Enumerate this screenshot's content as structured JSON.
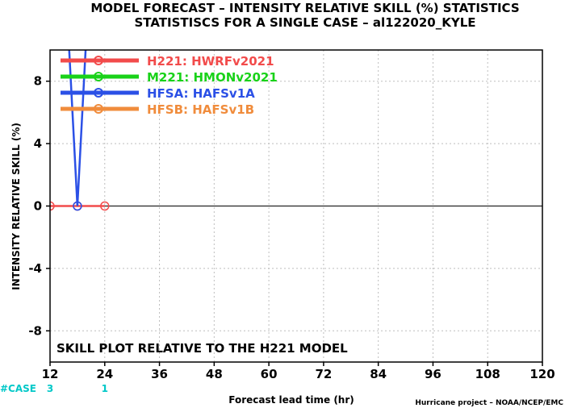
{
  "title_line1": "MODEL FORECAST – INTENSITY RELATIVE SKILL (%) STATISTICS",
  "title_line2": "STATISTISCS FOR A SINGLE CASE – al122020_KYLE",
  "note": "SKILL PLOT RELATIVE TO THE H221 MODEL",
  "credit": "Hurricane project – NOAA/NCEP/EMC",
  "case_label": "#CASE",
  "chart_data": {
    "type": "line",
    "xlabel": "Forecast lead time (hr)",
    "ylabel": "INTENSITY RELATIVE SKILL (%)",
    "xlim": [
      12,
      120
    ],
    "ylim": [
      -10,
      10
    ],
    "xticks": [
      12,
      24,
      36,
      48,
      60,
      72,
      84,
      96,
      108,
      120
    ],
    "yticks": [
      -8,
      -4,
      0,
      4,
      8
    ],
    "grid": true,
    "legend_position": "top-left",
    "case_counts": [
      {
        "x": 12,
        "label": "3"
      },
      {
        "x": 24,
        "label": "1"
      }
    ],
    "series": [
      {
        "name": "H221: HWRFv2021",
        "color": "#f24b4b",
        "points": [
          [
            12,
            0
          ],
          [
            18,
            0
          ],
          [
            24,
            0
          ]
        ]
      },
      {
        "name": "M221: HMONv2021",
        "color": "#19d219",
        "points": []
      },
      {
        "name": "HFSA: HAFSv1A",
        "color": "#2b50e6",
        "points": [
          [
            16.2,
            10
          ],
          [
            18,
            0
          ],
          [
            19.8,
            10
          ]
        ]
      },
      {
        "name": "HFSB: HAFSv1B",
        "color": "#f08c3c",
        "points": []
      }
    ]
  }
}
